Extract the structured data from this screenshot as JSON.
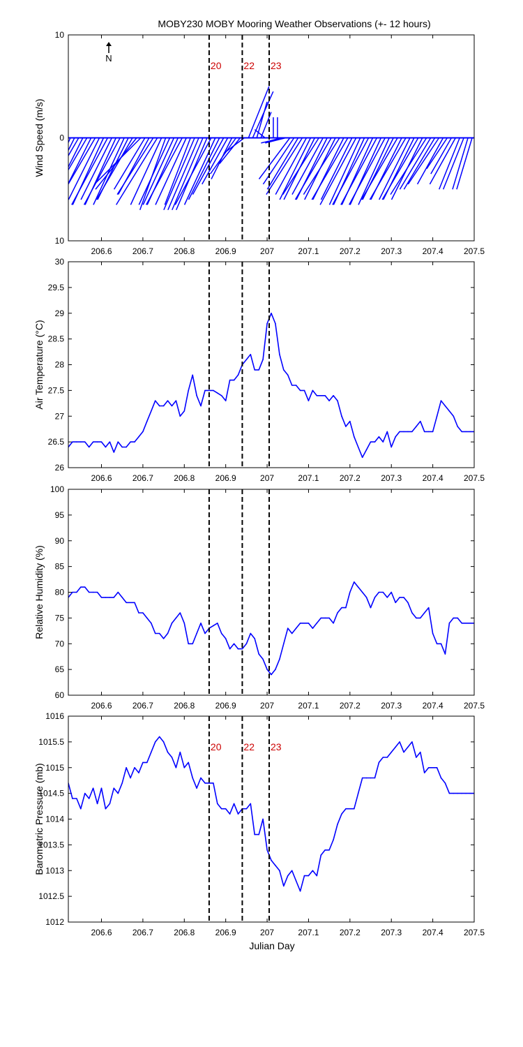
{
  "figure": {
    "title": "MOBY230 MOBY Mooring Weather Observations (+- 12 hours)",
    "xlabel_bottom": "Julian Day"
  },
  "colors": {
    "data": "#0000ff",
    "event_line": "#000000",
    "event_label": "#cc0000",
    "axis": "#000000"
  },
  "xticks": [
    206.6,
    206.7,
    206.8,
    206.9,
    207,
    207.1,
    207.2,
    207.3,
    207.4,
    207.5
  ],
  "events": [
    {
      "label": "20",
      "x": 206.86
    },
    {
      "label": "22",
      "x": 206.94
    },
    {
      "label": "23",
      "x": 207.005
    }
  ],
  "chart_data": [
    {
      "type": "vector",
      "id": "wind",
      "ylabel": "Wind Speed (m/s)",
      "xlim": [
        206.52,
        207.5
      ],
      "ylim": [
        -10,
        10
      ],
      "yticks": [
        10,
        0,
        10
      ],
      "north_label": "N",
      "show_event_labels": true,
      "description": "wind stick plot: u, v components (m/s)",
      "x": [
        206.525,
        206.535,
        206.545,
        206.555,
        206.565,
        206.575,
        206.585,
        206.595,
        206.605,
        206.615,
        206.625,
        206.635,
        206.645,
        206.655,
        206.665,
        206.675,
        206.685,
        206.695,
        206.705,
        206.715,
        206.725,
        206.735,
        206.745,
        206.755,
        206.765,
        206.775,
        206.785,
        206.795,
        206.805,
        206.815,
        206.825,
        206.835,
        206.845,
        206.855,
        206.865,
        206.875,
        206.885,
        206.895,
        206.905,
        206.915,
        206.925,
        206.935,
        206.945,
        206.955,
        206.965,
        206.975,
        206.985,
        206.995,
        207.005,
        207.015,
        207.025,
        207.035,
        207.045,
        207.055,
        207.065,
        207.075,
        207.085,
        207.095,
        207.105,
        207.115,
        207.125,
        207.135,
        207.145,
        207.155,
        207.165,
        207.175,
        207.185,
        207.195,
        207.205,
        207.215,
        207.225,
        207.235,
        207.245,
        207.255,
        207.265,
        207.275,
        207.285,
        207.295,
        207.305,
        207.315,
        207.325,
        207.335,
        207.345,
        207.355,
        207.365,
        207.375,
        207.385,
        207.395,
        207.405,
        207.415,
        207.425,
        207.435,
        207.445,
        207.455,
        207.465,
        207.475,
        207.485,
        207.495
      ],
      "u": [
        -2.5,
        -3,
        -3.5,
        -3,
        -3.5,
        -3,
        -3.5,
        -3,
        -3,
        -3.5,
        -3,
        -3,
        -3.5,
        -3,
        -3,
        -3.5,
        -4,
        -4.5,
        -3,
        -3,
        -3.5,
        -4,
        -3,
        -2.5,
        -3,
        -3,
        -3,
        -3.5,
        -3,
        -2.5,
        -3,
        -3,
        -3,
        -3,
        -3.5,
        -3,
        -3,
        -3,
        -2.5,
        -2,
        -2.5,
        -2,
        -2,
        2,
        2,
        1,
        1,
        -1,
        0,
        0,
        0,
        -2,
        -2,
        -3,
        -3,
        -3,
        -3.5,
        -3,
        -3,
        -3,
        -3.5,
        -3,
        -3,
        -3.5,
        -3,
        -3.5,
        -3,
        -3.5,
        -3,
        -3.5,
        -3,
        -3,
        -3.5,
        -3,
        -3.5,
        -3,
        -3.5,
        -3,
        -3,
        -3.5,
        -3,
        -3.5,
        -3,
        -3,
        -3.5,
        -3,
        -3.5,
        -3,
        -3,
        -3,
        -2.5,
        -2,
        -2,
        -2.5,
        -2,
        -2,
        -1.5,
        -1.5
      ],
      "v": [
        -5.5,
        -6,
        -6,
        -6,
        -6,
        -6,
        -6,
        -6,
        -6.5,
        -6.5,
        -6,
        -6.5,
        -6.5,
        -6.5,
        -6,
        -6,
        -5,
        -4.5,
        -5,
        -5.5,
        -5.5,
        -6.5,
        -6.5,
        -7,
        -6.5,
        -6.5,
        -6.5,
        -6.5,
        -6.5,
        -6.5,
        -7,
        -7,
        -7,
        -7,
        -6.5,
        -6.5,
        -6,
        -5.5,
        -4.5,
        -4,
        -3.5,
        -2.5,
        -1.5,
        5,
        4.5,
        3.5,
        2.5,
        0.8,
        0,
        2,
        2,
        -0.5,
        -0.5,
        -4,
        -4.5,
        -5,
        -5.5,
        -5.5,
        -6,
        -6,
        -5.5,
        -5.5,
        -6,
        -6,
        -6,
        -5.5,
        -6,
        -6,
        -6,
        -6.5,
        -6.5,
        -6.5,
        -6.5,
        -6.5,
        -6.5,
        -6.5,
        -6.5,
        -6.5,
        -6,
        -6,
        -6,
        -6,
        -6,
        -6,
        -6,
        -6,
        -5.5,
        -5,
        -5,
        -4.5,
        -4.5,
        -3,
        -3.5,
        -4.5,
        -5,
        -5,
        -5,
        -5
      ]
    },
    {
      "type": "line",
      "id": "airtemp",
      "ylabel": "Air Temperature (°C)",
      "xlim": [
        206.52,
        207.5
      ],
      "ylim": [
        26,
        30
      ],
      "yticks": [
        26,
        26.5,
        27,
        27.5,
        28,
        28.5,
        29,
        29.5,
        30
      ],
      "series": [
        {
          "x": [
            206.52,
            206.53,
            206.54,
            206.55,
            206.56,
            206.57,
            206.58,
            206.59,
            206.6,
            206.61,
            206.62,
            206.63,
            206.64,
            206.65,
            206.66,
            206.67,
            206.68,
            206.69,
            206.7,
            206.71,
            206.72,
            206.73,
            206.74,
            206.75,
            206.76,
            206.77,
            206.78,
            206.79,
            206.8,
            206.81,
            206.82,
            206.83,
            206.84,
            206.85,
            206.86,
            206.87,
            206.88,
            206.89,
            206.9,
            206.91,
            206.92,
            206.93,
            206.94,
            206.95,
            206.96,
            206.97,
            206.98,
            206.99,
            207.0,
            207.01,
            207.02,
            207.03,
            207.04,
            207.05,
            207.06,
            207.07,
            207.08,
            207.09,
            207.1,
            207.11,
            207.12,
            207.13,
            207.14,
            207.15,
            207.16,
            207.17,
            207.18,
            207.19,
            207.2,
            207.21,
            207.22,
            207.23,
            207.24,
            207.25,
            207.26,
            207.27,
            207.28,
            207.29,
            207.3,
            207.31,
            207.32,
            207.33,
            207.34,
            207.35,
            207.36,
            207.37,
            207.38,
            207.39,
            207.4,
            207.41,
            207.42,
            207.43,
            207.44,
            207.45,
            207.46,
            207.47,
            207.48,
            207.49,
            207.5
          ],
          "y": [
            26.4,
            26.5,
            26.5,
            26.5,
            26.5,
            26.4,
            26.5,
            26.5,
            26.5,
            26.4,
            26.5,
            26.3,
            26.5,
            26.4,
            26.4,
            26.5,
            26.5,
            26.6,
            26.7,
            26.9,
            27.1,
            27.3,
            27.2,
            27.2,
            27.3,
            27.2,
            27.3,
            27.0,
            27.1,
            27.5,
            27.8,
            27.4,
            27.2,
            27.5,
            27.5,
            27.5,
            27.45,
            27.4,
            27.3,
            27.7,
            27.7,
            27.8,
            28.0,
            28.1,
            28.2,
            27.9,
            27.9,
            28.1,
            28.8,
            29.0,
            28.8,
            28.2,
            27.9,
            27.8,
            27.6,
            27.6,
            27.5,
            27.5,
            27.3,
            27.5,
            27.4,
            27.4,
            27.4,
            27.3,
            27.4,
            27.3,
            27.0,
            26.8,
            26.9,
            26.6,
            26.4,
            26.2,
            26.35,
            26.5,
            26.5,
            26.6,
            26.5,
            26.7,
            26.4,
            26.6,
            26.7,
            26.7,
            26.7,
            26.7,
            26.8,
            26.9,
            26.7,
            26.7,
            26.7,
            27.0,
            27.3,
            27.2,
            27.1,
            27.0,
            26.8,
            26.7,
            26.7,
            26.7,
            26.7
          ]
        }
      ]
    },
    {
      "type": "line",
      "id": "humidity",
      "ylabel": "Relative Humidity (%)",
      "xlim": [
        206.52,
        207.5
      ],
      "ylim": [
        60,
        100
      ],
      "yticks": [
        60,
        65,
        70,
        75,
        80,
        85,
        90,
        95,
        100
      ],
      "series": [
        {
          "x": [
            206.52,
            206.53,
            206.54,
            206.55,
            206.56,
            206.57,
            206.58,
            206.59,
            206.6,
            206.61,
            206.62,
            206.63,
            206.64,
            206.65,
            206.66,
            206.67,
            206.68,
            206.69,
            206.7,
            206.71,
            206.72,
            206.73,
            206.74,
            206.75,
            206.76,
            206.77,
            206.78,
            206.79,
            206.8,
            206.81,
            206.82,
            206.83,
            206.84,
            206.85,
            206.86,
            206.87,
            206.88,
            206.89,
            206.9,
            206.91,
            206.92,
            206.93,
            206.94,
            206.95,
            206.96,
            206.97,
            206.98,
            206.99,
            207.0,
            207.01,
            207.02,
            207.03,
            207.04,
            207.05,
            207.06,
            207.07,
            207.08,
            207.09,
            207.1,
            207.11,
            207.12,
            207.13,
            207.14,
            207.15,
            207.16,
            207.17,
            207.18,
            207.19,
            207.2,
            207.21,
            207.22,
            207.23,
            207.24,
            207.25,
            207.26,
            207.27,
            207.28,
            207.29,
            207.3,
            207.31,
            207.32,
            207.33,
            207.34,
            207.35,
            207.36,
            207.37,
            207.38,
            207.39,
            207.4,
            207.41,
            207.42,
            207.43,
            207.44,
            207.45,
            207.46,
            207.47,
            207.48,
            207.49,
            207.5
          ],
          "y": [
            79,
            80,
            80,
            81,
            81,
            80,
            80,
            80,
            79,
            79,
            79,
            79,
            80,
            79,
            78,
            78,
            78,
            76,
            76,
            75,
            74,
            72,
            72,
            71,
            72,
            74,
            75,
            76,
            74,
            70,
            70,
            72,
            74,
            72,
            73,
            73.5,
            74,
            72,
            71,
            69,
            70,
            69,
            69,
            70,
            72,
            71,
            68,
            67,
            65,
            64,
            65,
            67,
            70,
            73,
            72,
            73,
            74,
            74,
            74,
            73,
            74,
            75,
            75,
            75,
            74,
            76,
            77,
            77,
            80,
            82,
            81,
            80,
            79,
            77,
            79,
            80,
            80,
            79,
            80,
            78,
            79,
            79,
            78,
            76,
            75,
            75,
            76,
            77,
            72,
            70,
            70,
            68,
            74,
            75,
            75,
            74,
            74,
            74,
            74
          ]
        }
      ]
    },
    {
      "type": "line",
      "id": "pressure",
      "ylabel": "Barometric Pressure (mb)",
      "xlabel": "Julian Day",
      "xlim": [
        206.52,
        207.5
      ],
      "ylim": [
        1012,
        1016
      ],
      "yticks": [
        1012,
        1012.5,
        1013,
        1013.5,
        1014,
        1014.5,
        1015,
        1015.5,
        1016
      ],
      "show_event_labels": true,
      "series": [
        {
          "x": [
            206.52,
            206.53,
            206.54,
            206.55,
            206.56,
            206.57,
            206.58,
            206.59,
            206.6,
            206.61,
            206.62,
            206.63,
            206.64,
            206.65,
            206.66,
            206.67,
            206.68,
            206.69,
            206.7,
            206.71,
            206.72,
            206.73,
            206.74,
            206.75,
            206.76,
            206.77,
            206.78,
            206.79,
            206.8,
            206.81,
            206.82,
            206.83,
            206.84,
            206.85,
            206.86,
            206.87,
            206.88,
            206.89,
            206.9,
            206.91,
            206.92,
            206.93,
            206.94,
            206.95,
            206.96,
            206.97,
            206.98,
            206.99,
            207.0,
            207.01,
            207.02,
            207.03,
            207.04,
            207.05,
            207.06,
            207.07,
            207.08,
            207.09,
            207.1,
            207.11,
            207.12,
            207.13,
            207.14,
            207.15,
            207.16,
            207.17,
            207.18,
            207.19,
            207.2,
            207.21,
            207.22,
            207.23,
            207.24,
            207.25,
            207.26,
            207.27,
            207.28,
            207.29,
            207.3,
            207.31,
            207.32,
            207.33,
            207.34,
            207.35,
            207.36,
            207.37,
            207.38,
            207.39,
            207.4,
            207.41,
            207.42,
            207.43,
            207.44,
            207.45,
            207.46,
            207.47,
            207.48,
            207.49,
            207.5
          ],
          "y": [
            1014.7,
            1014.4,
            1014.4,
            1014.2,
            1014.5,
            1014.4,
            1014.6,
            1014.3,
            1014.6,
            1014.2,
            1014.3,
            1014.6,
            1014.5,
            1014.7,
            1015.0,
            1014.8,
            1015.0,
            1014.9,
            1015.1,
            1015.1,
            1015.3,
            1015.5,
            1015.6,
            1015.5,
            1015.3,
            1015.2,
            1015.0,
            1015.3,
            1015.0,
            1015.1,
            1014.8,
            1014.6,
            1014.8,
            1014.7,
            1014.7,
            1014.7,
            1014.3,
            1014.2,
            1014.2,
            1014.1,
            1014.3,
            1014.1,
            1014.2,
            1014.2,
            1014.3,
            1013.7,
            1013.7,
            1014.0,
            1013.4,
            1013.2,
            1013.1,
            1013.0,
            1012.7,
            1012.9,
            1013.0,
            1012.8,
            1012.6,
            1012.9,
            1012.9,
            1013.0,
            1012.9,
            1013.3,
            1013.4,
            1013.4,
            1013.6,
            1013.9,
            1014.1,
            1014.2,
            1014.2,
            1014.2,
            1014.5,
            1014.8,
            1014.8,
            1014.8,
            1014.8,
            1015.1,
            1015.2,
            1015.2,
            1015.3,
            1015.4,
            1015.5,
            1015.3,
            1015.4,
            1015.5,
            1015.2,
            1015.3,
            1014.9,
            1015.0,
            1015.0,
            1015.0,
            1014.8,
            1014.7,
            1014.5,
            1014.5,
            1014.5,
            1014.5,
            1014.5,
            1014.5,
            1014.5
          ]
        }
      ]
    }
  ]
}
